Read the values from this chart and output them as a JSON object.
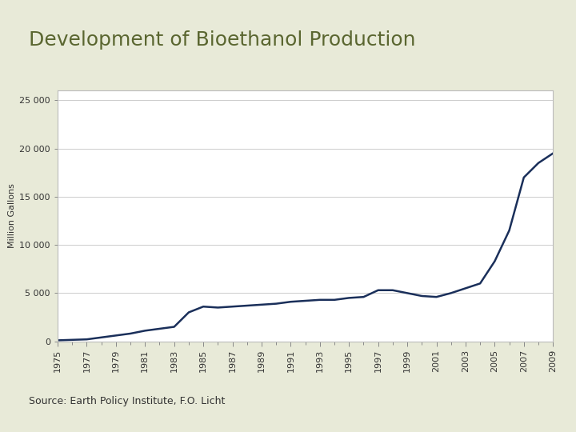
{
  "title": "Development of Bioethanol Production",
  "ylabel": "Million Gallons",
  "source": "Source: Earth Policy Institute, F.O. Licht",
  "background_color": "#e8ead8",
  "plot_background": "#ffffff",
  "line_color": "#1a2f5a",
  "title_color": "#5a6630",
  "years": [
    1975,
    1976,
    1977,
    1978,
    1979,
    1980,
    1981,
    1982,
    1983,
    1984,
    1985,
    1986,
    1987,
    1988,
    1989,
    1990,
    1991,
    1992,
    1993,
    1994,
    1995,
    1996,
    1997,
    1998,
    1999,
    2000,
    2001,
    2002,
    2003,
    2004,
    2005,
    2006,
    2007,
    2008,
    2009
  ],
  "values": [
    100,
    150,
    200,
    400,
    600,
    800,
    1100,
    1300,
    1500,
    3000,
    3600,
    3500,
    3600,
    3700,
    3800,
    3900,
    4100,
    4200,
    4300,
    4300,
    4500,
    4600,
    5300,
    5300,
    5000,
    4700,
    4600,
    5000,
    5500,
    6000,
    8300,
    11500,
    17000,
    18500,
    19500
  ],
  "ylim": [
    0,
    26000
  ],
  "yticks": [
    0,
    5000,
    10000,
    15000,
    20000,
    25000
  ],
  "ytick_labels": [
    "0",
    "5 000",
    "10 000",
    "15 000",
    "20 000",
    "25 000"
  ],
  "xtick_years": [
    1975,
    1977,
    1979,
    1981,
    1983,
    1985,
    1987,
    1989,
    1991,
    1993,
    1995,
    1997,
    1999,
    2001,
    2003,
    2005,
    2007,
    2009
  ],
  "line_width": 1.8,
  "title_fontsize": 18,
  "axis_fontsize": 8,
  "ylabel_fontsize": 8,
  "source_fontsize": 9
}
